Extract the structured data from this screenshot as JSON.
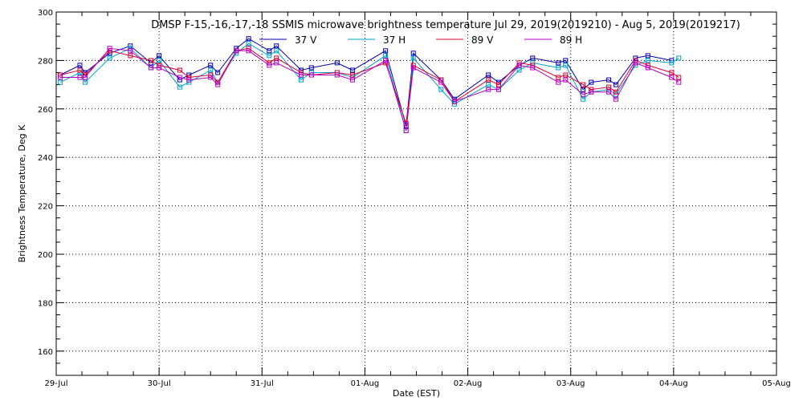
{
  "chart_data": {
    "type": "line",
    "title": "DMSP F-15,-16,-17,-18 SSMIS microwave brightness temperature Jul 29, 2019(2019210) - Aug  5, 2019(2019217)",
    "xlabel": "Date (EST)",
    "ylabel": "Brightness Temperature, Deg K",
    "xlim": [
      "29-Jul",
      "05-Aug"
    ],
    "ylim": [
      150,
      300
    ],
    "x_ticks": [
      "29-Jul",
      "30-Jul",
      "31-Jul",
      "01-Aug",
      "02-Aug",
      "03-Aug",
      "04-Aug",
      "05-Aug"
    ],
    "y_ticks": [
      160,
      180,
      200,
      220,
      240,
      260,
      280,
      300
    ],
    "grid": true,
    "legend_position": "top-center",
    "x_unit": "days since 29-Jul 00:00",
    "series": [
      {
        "name": "37 V",
        "color": "#0000b4",
        "points": [
          [
            0.04,
            274
          ],
          [
            0.23,
            278
          ],
          [
            0.28,
            275
          ],
          [
            0.52,
            283
          ],
          [
            0.72,
            286
          ],
          [
            0.92,
            279
          ],
          [
            1.0,
            282
          ],
          [
            1.2,
            272
          ],
          [
            1.29,
            274
          ],
          [
            1.5,
            278
          ],
          [
            1.57,
            275
          ],
          [
            1.75,
            285
          ],
          [
            1.87,
            289
          ],
          [
            2.07,
            284
          ],
          [
            2.14,
            286
          ],
          [
            2.38,
            276
          ],
          [
            2.48,
            277
          ],
          [
            2.73,
            279
          ],
          [
            2.88,
            276
          ],
          [
            3.2,
            284
          ],
          [
            3.4,
            253
          ],
          [
            3.47,
            283
          ],
          [
            3.74,
            272
          ],
          [
            3.87,
            264
          ],
          [
            4.2,
            274
          ],
          [
            4.3,
            271
          ],
          [
            4.5,
            278
          ],
          [
            4.63,
            281
          ],
          [
            4.88,
            279
          ],
          [
            4.95,
            280
          ],
          [
            5.12,
            268
          ],
          [
            5.2,
            271
          ],
          [
            5.37,
            272
          ],
          [
            5.44,
            270
          ],
          [
            5.63,
            281
          ],
          [
            5.75,
            282
          ],
          [
            5.98,
            280
          ]
        ]
      },
      {
        "name": "37 H",
        "color": "#00a0c8",
        "points": [
          [
            0.04,
            271
          ],
          [
            0.23,
            275
          ],
          [
            0.28,
            271
          ],
          [
            0.52,
            281
          ],
          [
            0.72,
            285
          ],
          [
            0.92,
            277
          ],
          [
            1.0,
            280
          ],
          [
            1.2,
            269
          ],
          [
            1.29,
            271
          ],
          [
            1.5,
            276
          ],
          [
            1.57,
            271
          ],
          [
            1.75,
            283
          ],
          [
            1.87,
            287
          ],
          [
            2.07,
            282
          ],
          [
            2.14,
            284
          ],
          [
            2.38,
            272
          ],
          [
            2.48,
            275
          ],
          [
            2.73,
            275
          ],
          [
            2.88,
            273
          ],
          [
            3.2,
            282
          ],
          [
            3.4,
            251
          ],
          [
            3.47,
            281
          ],
          [
            3.74,
            268
          ],
          [
            3.87,
            262
          ],
          [
            4.2,
            270
          ],
          [
            4.3,
            268
          ],
          [
            4.5,
            276
          ],
          [
            4.63,
            279
          ],
          [
            4.88,
            277
          ],
          [
            4.95,
            278
          ],
          [
            5.12,
            264
          ],
          [
            5.2,
            267
          ],
          [
            5.37,
            268
          ],
          [
            5.44,
            266
          ],
          [
            5.63,
            278
          ],
          [
            5.75,
            280
          ],
          [
            5.98,
            279
          ],
          [
            6.05,
            281
          ]
        ]
      },
      {
        "name": "89 V",
        "color": "#dc0032",
        "points": [
          [
            0.04,
            274
          ],
          [
            0.23,
            276
          ],
          [
            0.28,
            274
          ],
          [
            0.52,
            284
          ],
          [
            0.72,
            282
          ],
          [
            0.92,
            280
          ],
          [
            1.0,
            278
          ],
          [
            1.2,
            276
          ],
          [
            1.29,
            273
          ],
          [
            1.5,
            274
          ],
          [
            1.57,
            271
          ],
          [
            1.75,
            284
          ],
          [
            1.87,
            285
          ],
          [
            2.07,
            279
          ],
          [
            2.14,
            281
          ],
          [
            2.38,
            275
          ],
          [
            2.48,
            274
          ],
          [
            2.73,
            275
          ],
          [
            2.88,
            274
          ],
          [
            3.2,
            279
          ],
          [
            3.4,
            254
          ],
          [
            3.47,
            278
          ],
          [
            3.74,
            272
          ],
          [
            3.87,
            263
          ],
          [
            4.2,
            272
          ],
          [
            4.3,
            270
          ],
          [
            4.5,
            279
          ],
          [
            4.63,
            278
          ],
          [
            4.88,
            273
          ],
          [
            4.95,
            274
          ],
          [
            5.12,
            270
          ],
          [
            5.2,
            268
          ],
          [
            5.37,
            269
          ],
          [
            5.44,
            267
          ],
          [
            5.63,
            280
          ],
          [
            5.75,
            278
          ],
          [
            5.98,
            275
          ],
          [
            6.05,
            273
          ]
        ]
      },
      {
        "name": "89 H",
        "color": "#b400c8",
        "points": [
          [
            0.04,
            273
          ],
          [
            0.23,
            273
          ],
          [
            0.28,
            273
          ],
          [
            0.52,
            285
          ],
          [
            0.72,
            284
          ],
          [
            0.92,
            277
          ],
          [
            1.0,
            277
          ],
          [
            1.2,
            273
          ],
          [
            1.29,
            272
          ],
          [
            1.5,
            273
          ],
          [
            1.57,
            270
          ],
          [
            1.75,
            284
          ],
          [
            1.87,
            284
          ],
          [
            2.07,
            278
          ],
          [
            2.14,
            279
          ],
          [
            2.38,
            274
          ],
          [
            2.48,
            274
          ],
          [
            2.73,
            274
          ],
          [
            2.88,
            272
          ],
          [
            3.2,
            280
          ],
          [
            3.4,
            251
          ],
          [
            3.47,
            277
          ],
          [
            3.74,
            271
          ],
          [
            3.87,
            263
          ],
          [
            4.2,
            268
          ],
          [
            4.3,
            268
          ],
          [
            4.5,
            278
          ],
          [
            4.63,
            277
          ],
          [
            4.88,
            271
          ],
          [
            4.95,
            272
          ],
          [
            5.12,
            266
          ],
          [
            5.2,
            267
          ],
          [
            5.37,
            267
          ],
          [
            5.44,
            264
          ],
          [
            5.63,
            279
          ],
          [
            5.75,
            277
          ],
          [
            5.98,
            273
          ],
          [
            6.05,
            271
          ]
        ]
      }
    ]
  }
}
